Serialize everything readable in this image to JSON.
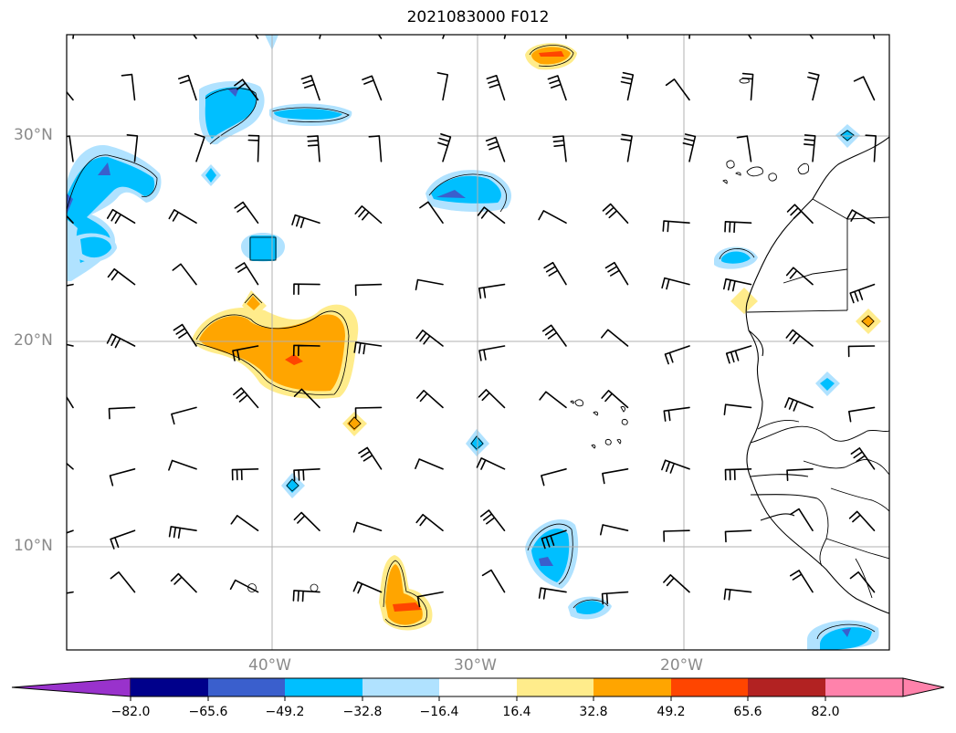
{
  "title": "2021083000 F012",
  "axes": {
    "lat_ticks": [
      "30°N",
      "20°N",
      "10°N"
    ],
    "lon_ticks": [
      "40°W",
      "30°W",
      "20°W"
    ]
  },
  "colorbar": {
    "ticks": [
      "−82.0",
      "−65.6",
      "−49.2",
      "−32.8",
      "−16.4",
      "16.4",
      "32.8",
      "49.2",
      "65.6",
      "82.0"
    ],
    "colors": [
      "#9932cc",
      "#00008b",
      "#3a5fcd",
      "#00bfff",
      "#b0e2ff",
      "#ffffff",
      "#ffec8b",
      "#ffa500",
      "#ff4500",
      "#b22222",
      "#ff82ab"
    ]
  },
  "map": {
    "lon_range": [
      -50,
      -10
    ],
    "lat_range": [
      5,
      35
    ],
    "gridlines": true,
    "features": [
      "wind-barbs",
      "shaded-anomaly-contours",
      "coastlines",
      "country-borders"
    ]
  }
}
